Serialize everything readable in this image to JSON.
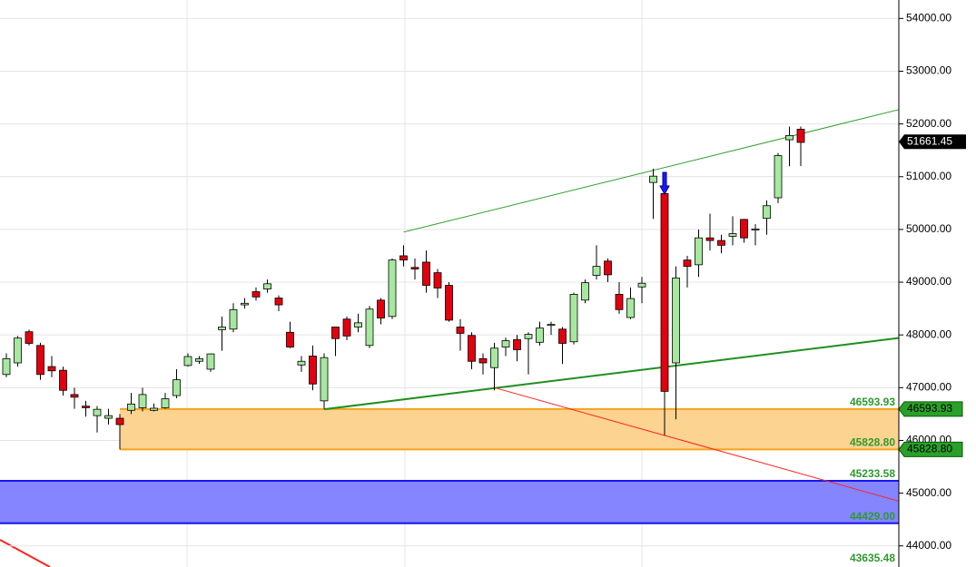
{
  "chart_data": {
    "type": "candlestick",
    "up_color": "#a6e8a0",
    "down_color": "#e3000f",
    "ylim": [
      43600,
      54350
    ],
    "yticks": [
      {
        "value": 44000,
        "label": "44000.00"
      },
      {
        "value": 45000,
        "label": "45000.00"
      },
      {
        "value": 46000,
        "label": "46000.00"
      },
      {
        "value": 47000,
        "label": "47000.00"
      },
      {
        "value": 48000,
        "label": "48000.00"
      },
      {
        "value": 49000,
        "label": "49000.00"
      },
      {
        "value": 50000,
        "label": "50000.00"
      },
      {
        "value": 51000,
        "label": "51000.00"
      },
      {
        "value": 52000,
        "label": "52000.00"
      },
      {
        "value": 53000,
        "label": "53000.00"
      },
      {
        "value": 54000,
        "label": "54000.00"
      }
    ],
    "grid": true,
    "open": [
      47250,
      47470,
      48060,
      47800,
      47400,
      47330,
      46870,
      46650,
      46470,
      46420,
      46420,
      46570,
      46620,
      46570,
      46620,
      46850,
      47420,
      47500,
      47350,
      48100,
      48110,
      48570,
      48820,
      48870,
      48700,
      48050,
      47430,
      47600,
      46750,
      48150,
      48300,
      48150,
      47800,
      48660,
      48350,
      49500,
      49280,
      49380,
      49180,
      48940,
      48150,
      47990,
      47550,
      47380,
      47770,
      47910,
      47930,
      47860,
      48180,
      48110,
      47870,
      48660,
      49130,
      49400,
      48770,
      48330,
      48910,
      50890,
      50680,
      47470,
      49420,
      49330,
      49840,
      49790,
      49870,
      50190,
      49990,
      50210,
      50600,
      51700,
      51900
    ],
    "high": [
      47650,
      47980,
      48100,
      47850,
      47600,
      47400,
      47000,
      46750,
      46650,
      46600,
      46500,
      46900,
      47000,
      46700,
      46900,
      47350,
      47650,
      47600,
      47650,
      48350,
      48600,
      48700,
      48900,
      49050,
      48750,
      48250,
      47600,
      47800,
      47650,
      48150,
      48350,
      48400,
      48550,
      48700,
      49450,
      49700,
      49450,
      49600,
      49250,
      49000,
      48300,
      48050,
      47650,
      47850,
      47950,
      48000,
      48050,
      48250,
      48250,
      48150,
      48800,
      49050,
      49700,
      49450,
      49000,
      48900,
      49100,
      51150,
      50750,
      49300,
      49500,
      50000,
      50300,
      49900,
      50250,
      50200,
      50100,
      50550,
      51450,
      51950,
      51950
    ],
    "low": [
      47200,
      47400,
      47800,
      47150,
      47200,
      46850,
      46600,
      46450,
      46150,
      46300,
      45830,
      46500,
      46550,
      46550,
      46600,
      46800,
      47400,
      47450,
      47300,
      47700,
      48050,
      48500,
      48650,
      48800,
      48450,
      47750,
      47300,
      46950,
      46600,
      47600,
      47900,
      48050,
      47750,
      48200,
      48300,
      49300,
      49050,
      48800,
      48700,
      48250,
      47700,
      47350,
      47250,
      46950,
      47600,
      47500,
      47250,
      47800,
      48000,
      47450,
      47820,
      48600,
      49050,
      49000,
      48400,
      48300,
      48600,
      50200,
      46100,
      46400,
      48900,
      49100,
      49600,
      49550,
      49700,
      49750,
      49700,
      49900,
      50500,
      51200,
      51200
    ],
    "close": [
      47550,
      47940,
      47840,
      47250,
      47320,
      46950,
      46820,
      46620,
      46590,
      46470,
      46300,
      46690,
      46870,
      46610,
      46790,
      47150,
      47590,
      47550,
      47640,
      48150,
      48480,
      48600,
      48720,
      48970,
      48570,
      47770,
      47500,
      47070,
      47570,
      47930,
      47980,
      48230,
      48490,
      48320,
      49420,
      49420,
      49250,
      48940,
      48890,
      48280,
      48030,
      47500,
      47470,
      47750,
      47890,
      47720,
      48010,
      48130,
      48200,
      47840,
      48770,
      48990,
      49300,
      49140,
      48480,
      48690,
      48980,
      51010,
      46930,
      49080,
      49300,
      49840,
      49790,
      49700,
      49920,
      49840,
      50010,
      50450,
      51400,
      51780,
      51650
    ],
    "trendlines": [
      {
        "color": "#2ca02c",
        "width": 1,
        "from": [
          35,
          49950
        ],
        "to": [
          78.6,
          52270
        ]
      },
      {
        "color": "#1f8f1f",
        "width": 2,
        "from": [
          28,
          46590
        ],
        "to": [
          78.6,
          47940
        ]
      },
      {
        "color": "#ff2020",
        "width": 1,
        "from": [
          43,
          47000
        ],
        "to": [
          78.6,
          44850
        ]
      }
    ],
    "zones": [
      {
        "start": 10,
        "low": 45828.8,
        "high": 46593.93,
        "low_label": "45828.80",
        "high_label": "46593.93",
        "fill": "#fdd391",
        "border": "#f5a31c",
        "tagged": true
      },
      {
        "start": -1,
        "low": 44429.0,
        "high": 45233.58,
        "low_label": "44429.00",
        "high_label": "45233.58",
        "fill": "#8585ff",
        "border": "#1515ee",
        "tagged": false
      }
    ],
    "levels": [
      {
        "value": 43635.48,
        "label": "43635.48"
      }
    ],
    "last_price": {
      "value": 51661.45,
      "label": "51661.45"
    }
  }
}
